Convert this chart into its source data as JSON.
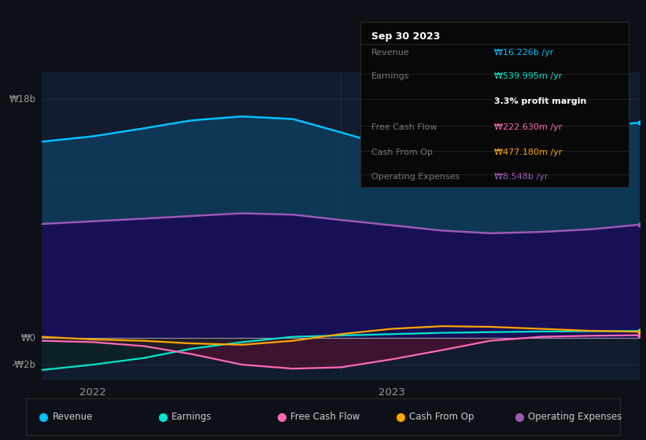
{
  "bg_color": "#0d1117",
  "plot_bg": "#111c2e",
  "info_box": {
    "title": "Sep 30 2023",
    "rows": [
      {
        "label": "Revenue",
        "value": "₩16.226b /yr",
        "value_color": "#00bfff"
      },
      {
        "label": "Earnings",
        "value": "₩539.995m /yr",
        "value_color": "#00e5cc"
      },
      {
        "label": "",
        "value": "3.3% profit margin",
        "value_color": "#ffffff"
      },
      {
        "label": "Free Cash Flow",
        "value": "₩222.630m /yr",
        "value_color": "#ff69b4"
      },
      {
        "label": "Cash From Op",
        "value": "₩477.180m /yr",
        "value_color": "#ffa500"
      },
      {
        "label": "Operating Expenses",
        "value": "₩8.548b /yr",
        "value_color": "#9b59b6"
      }
    ]
  },
  "x": [
    2021.83,
    2022.0,
    2022.17,
    2022.33,
    2022.5,
    2022.67,
    2022.83,
    2023.0,
    2023.17,
    2023.33,
    2023.5,
    2023.67,
    2023.83
  ],
  "revenue": [
    14.8,
    15.2,
    15.8,
    16.4,
    16.7,
    16.5,
    15.5,
    14.4,
    14.6,
    15.0,
    15.5,
    15.9,
    16.226
  ],
  "operating_expenses": [
    8.6,
    8.8,
    9.0,
    9.2,
    9.4,
    9.3,
    8.9,
    8.5,
    8.1,
    7.9,
    8.0,
    8.2,
    8.548
  ],
  "earnings": [
    -2.4,
    -2.0,
    -1.5,
    -0.8,
    -0.3,
    0.1,
    0.2,
    0.3,
    0.4,
    0.45,
    0.5,
    0.52,
    0.54
  ],
  "free_cash_flow": [
    -0.2,
    -0.3,
    -0.6,
    -1.2,
    -2.0,
    -2.3,
    -2.2,
    -1.6,
    -0.9,
    -0.2,
    0.1,
    0.18,
    0.222
  ],
  "cash_from_op": [
    0.1,
    -0.1,
    -0.2,
    -0.4,
    -0.5,
    -0.2,
    0.3,
    0.7,
    0.9,
    0.85,
    0.7,
    0.55,
    0.477
  ],
  "colors": {
    "revenue": "#00bfff",
    "operating_expenses": "#9b59b6",
    "earnings": "#00e5cc",
    "free_cash_flow": "#ff69b4",
    "cash_from_op": "#ffa500"
  },
  "fill_rev_op": "#0d3d5c",
  "fill_op_zero": "#1e1060",
  "fill_neg_fcf": "#5a1530",
  "fill_neg_earn": "#1a3020",
  "ylim": [
    -3.2,
    20.0
  ],
  "y_label_18b": 18,
  "y_label_0": 0,
  "y_label_m2b": -2,
  "xticks": [
    2022.0,
    2023.0
  ],
  "xtick_labels": [
    "2022",
    "2023"
  ],
  "legend": [
    {
      "label": "Revenue",
      "color": "#00bfff"
    },
    {
      "label": "Earnings",
      "color": "#00e5cc"
    },
    {
      "label": "Free Cash Flow",
      "color": "#ff69b4"
    },
    {
      "label": "Cash From Op",
      "color": "#ffa500"
    },
    {
      "label": "Operating Expenses",
      "color": "#9b59b6"
    }
  ],
  "grid_color": "#1e2d45",
  "zero_line_color": "#cccccc",
  "label_color": "#999999"
}
